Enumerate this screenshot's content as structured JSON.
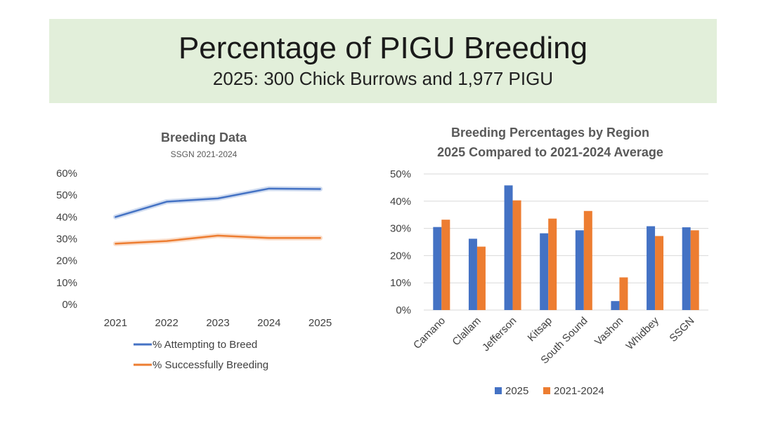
{
  "slide": {
    "title": "Percentage of PIGU Breeding",
    "subtitle": "2025: 300 Chick Burrows and 1,977 PIGU"
  },
  "colors": {
    "blue": "#4472c4",
    "orange": "#ed7d31",
    "banner": "#e2efda"
  },
  "chart_data": [
    {
      "type": "line",
      "title": "Breeding Data",
      "subtitle": "SSGN 2021-2024",
      "x": [
        "2021",
        "2022",
        "2023",
        "2024",
        "2025"
      ],
      "y_ticks": [
        "0%",
        "10%",
        "20%",
        "30%",
        "40%",
        "50%",
        "60%"
      ],
      "ylim": [
        0,
        60
      ],
      "series": [
        {
          "name": "% Attempting to Breed",
          "color": "#4472c4",
          "values": [
            40,
            47,
            48.5,
            53,
            52.8
          ]
        },
        {
          "name": "% Successfully Breeding",
          "color": "#ed7d31",
          "values": [
            27.8,
            29,
            31.5,
            30.4,
            30.4
          ]
        }
      ],
      "legend": "bottom"
    },
    {
      "type": "bar",
      "title": "Breeding Percentages by Region",
      "subtitle": "2025 Compared to 2021-2024 Average",
      "categories": [
        "Camano",
        "Clallam",
        "Jefferson",
        "Kitsap",
        "South Sound",
        "Vashon",
        "Whidbey",
        "SSGN"
      ],
      "y_ticks": [
        "0%",
        "10%",
        "20%",
        "30%",
        "40%",
        "50%"
      ],
      "ylim": [
        0,
        50
      ],
      "series": [
        {
          "name": "2025",
          "color": "#4472c4",
          "values": [
            30.5,
            26.2,
            45.8,
            28.2,
            29.3,
            3.3,
            30.8,
            30.4
          ]
        },
        {
          "name": "2021-2024",
          "color": "#ed7d31",
          "values": [
            33.2,
            23.3,
            40.3,
            33.6,
            36.4,
            12,
            27.2,
            29.3
          ]
        }
      ],
      "legend": "bottom"
    }
  ]
}
